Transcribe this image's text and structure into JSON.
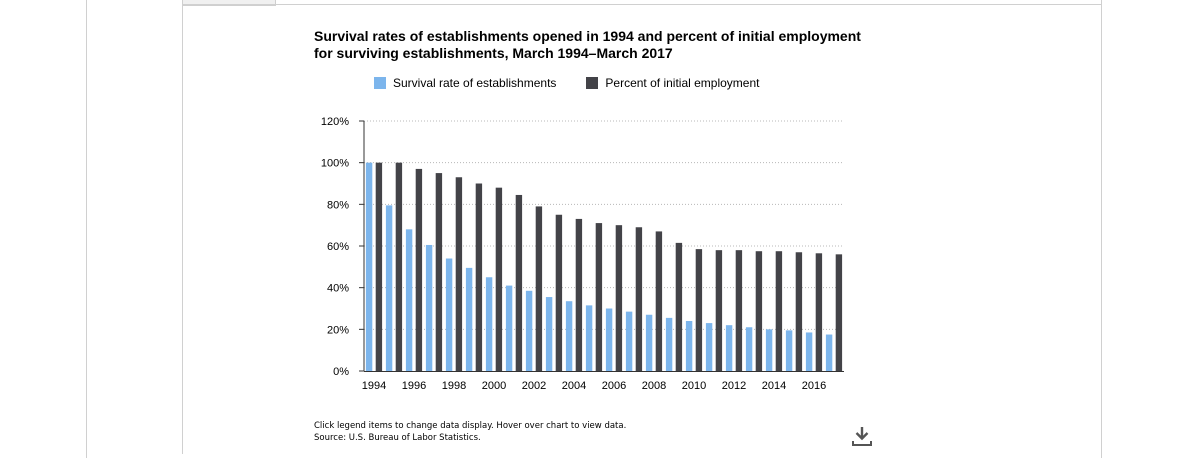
{
  "chart_data": {
    "type": "bar",
    "title": "Survival rates of establishments opened in 1994 and percent of initial employment for surviving establishments, March 1994–March 2017",
    "categories": [
      "1994",
      "1995",
      "1996",
      "1997",
      "1998",
      "1999",
      "2000",
      "2001",
      "2002",
      "2003",
      "2004",
      "2005",
      "2006",
      "2007",
      "2008",
      "2009",
      "2010",
      "2011",
      "2012",
      "2013",
      "2014",
      "2015",
      "2016",
      "2017"
    ],
    "x_tick_labels": [
      "1994",
      "1996",
      "1998",
      "2000",
      "2002",
      "2004",
      "2006",
      "2008",
      "2010",
      "2012",
      "2014",
      "2016"
    ],
    "series": [
      {
        "name": "Survival rate of establishments",
        "color": "#7cb5ec",
        "values": [
          100,
          79.5,
          68,
          60.5,
          54,
          49.5,
          45,
          41,
          38.5,
          35.5,
          33.5,
          31.5,
          30,
          28.5,
          27,
          25.5,
          24,
          23,
          22,
          21,
          20,
          19.5,
          18.5,
          17.5
        ]
      },
      {
        "name": "Percent of initial employment",
        "color": "#434348",
        "values": [
          100,
          100,
          97,
          95,
          93,
          90,
          88,
          84.5,
          79,
          75,
          73,
          71,
          70,
          69,
          67,
          61.5,
          58.5,
          58,
          58,
          57.5,
          57.5,
          57,
          56.5,
          56
        ]
      }
    ],
    "ylim": [
      0,
      120
    ],
    "y_ticks": [
      0,
      20,
      40,
      60,
      80,
      100,
      120
    ],
    "y_tick_suffix": "%",
    "xlabel": "",
    "ylabel": "",
    "grid": "horizontal-dotted",
    "legend_position": "top"
  },
  "footer": {
    "note_line1": "Click legend items to change data display. Hover over chart to view data.",
    "note_line2": "Source: U.S. Bureau of Labor Statistics."
  },
  "icons": {
    "download": "download-icon"
  }
}
